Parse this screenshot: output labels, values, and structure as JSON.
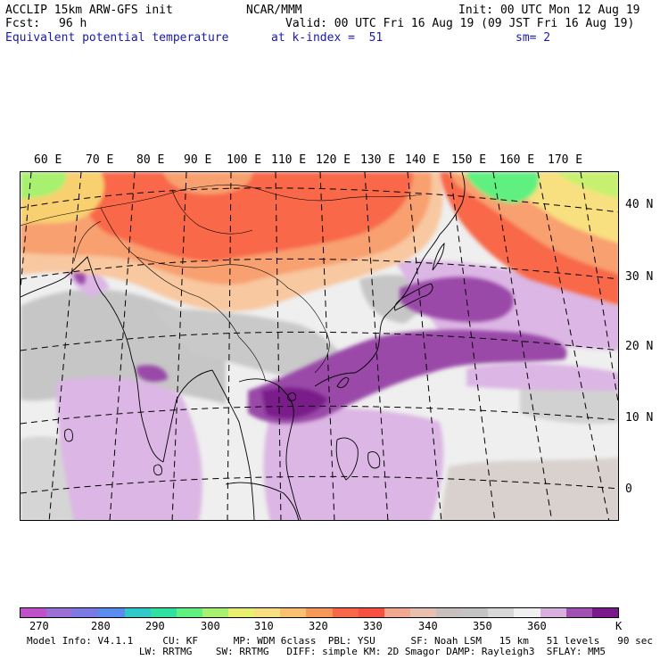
{
  "header": {
    "model": "ACCLIP 15km ARW-GFS init",
    "org": "NCAR/MMM",
    "init": "Init: 00 UTC Mon 12 Aug 19",
    "fcst_label": "Fcst:",
    "fcst_value": "96 h",
    "valid": "Valid: 00 UTC Fri 16 Aug 19 (09 JST Fri 16 Aug 19)",
    "field": "Equivalent potential temperature",
    "level": "at k-index =  51",
    "smooth": "sm= 2"
  },
  "map": {
    "lon_labels": [
      "60 E",
      "70 E",
      "80 E",
      "90 E",
      "100 E",
      "110 E",
      "120 E",
      "130 E",
      "140 E",
      "150 E",
      "160 E",
      "170 E"
    ],
    "lat_labels": [
      "40 N",
      "30 N",
      "20 N",
      "10 N",
      "0"
    ]
  },
  "colorbar": {
    "colors": [
      "#c050c8",
      "#9a6fd6",
      "#7a7ae6",
      "#5a8cf0",
      "#30c8c8",
      "#30e0a0",
      "#60f080",
      "#a8f070",
      "#e8f070",
      "#f8e080",
      "#f8c070",
      "#f89858",
      "#f86848",
      "#f85040",
      "#f0a890",
      "#e8c0b0",
      "#c8c0bc",
      "#c4c4c4",
      "#d8d8d8",
      "#f0f0f0",
      "#d8b0e0",
      "#a050b0",
      "#7a1a8a"
    ],
    "ticks": [
      "270",
      "280",
      "290",
      "300",
      "310",
      "320",
      "330",
      "340",
      "350",
      "360"
    ],
    "unit": "K"
  },
  "footer": {
    "line1": "Model Info: V4.1.1     CU: KF      MP: WDM 6class  PBL: YSU      SF: Noah LSM   15 km   51 levels   90 sec",
    "line2": "                   LW: RRTMG    SW: RRTMG   DIFF: simple KM: 2D Smagor DAMP: Rayleigh3  SFLAY: MM5"
  }
}
